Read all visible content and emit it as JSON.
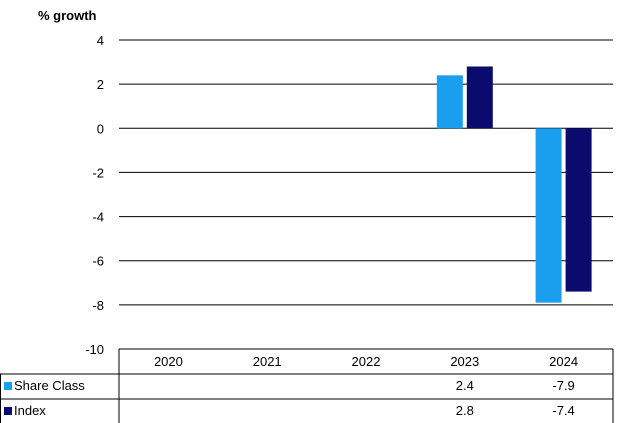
{
  "chart_data": {
    "type": "bar",
    "ylabel": "% growth",
    "ylim": [
      -10,
      4
    ],
    "yticks": [
      "4",
      "2",
      "0",
      "-2",
      "-4",
      "-6",
      "-8",
      "-10"
    ],
    "categories": [
      "2020",
      "2021",
      "2022",
      "2023",
      "2024"
    ],
    "series": [
      {
        "name": "Share Class",
        "color": "#1a9fef",
        "values": [
          null,
          null,
          null,
          2.4,
          -7.9
        ],
        "labels": [
          "",
          "",
          "",
          "2.4",
          "-7.9"
        ]
      },
      {
        "name": "Index",
        "color": "#0b0b6e",
        "values": [
          null,
          null,
          null,
          2.8,
          -7.4
        ],
        "labels": [
          "",
          "",
          "",
          "2.8",
          "-7.4"
        ]
      }
    ],
    "grid": true,
    "legend": "data table below chart"
  }
}
